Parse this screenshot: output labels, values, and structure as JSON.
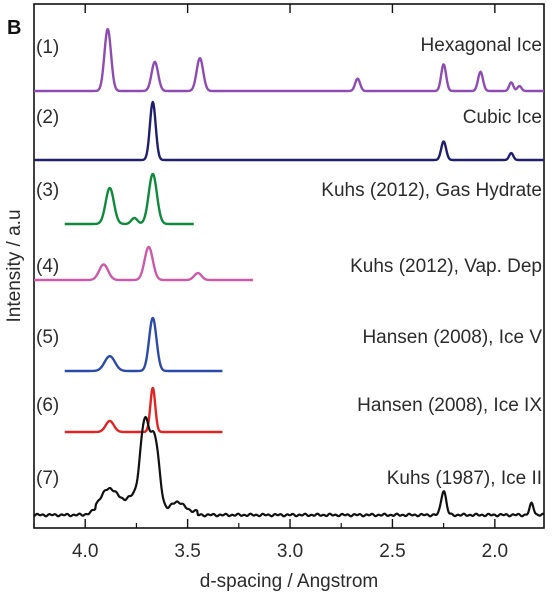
{
  "panel_label": "B",
  "chart_data": {
    "type": "line",
    "title": "",
    "xlabel": "d-spacing / Angstrom",
    "ylabel": "Intensity / a.u",
    "xlim": [
      4.25,
      1.76
    ],
    "x_reversed": true,
    "x_ticks": [
      4.0,
      3.5,
      3.0,
      2.5,
      2.0
    ],
    "x_tick_labels": [
      "4.0",
      "3.5",
      "3.0",
      "2.5",
      "2.0"
    ],
    "y_ticks_shown": false,
    "grid": false,
    "legend": "none",
    "series": [
      {
        "index_label": "(1)",
        "name": "Hexagonal Ice",
        "color": "#8e4cb3",
        "x_range": [
          4.25,
          1.76
        ],
        "peaks": [
          {
            "x": 3.89,
            "height": 1.0,
            "width": 0.016
          },
          {
            "x": 3.66,
            "height": 0.47,
            "width": 0.016
          },
          {
            "x": 3.44,
            "height": 0.53,
            "width": 0.016
          },
          {
            "x": 2.67,
            "height": 0.2,
            "width": 0.012
          },
          {
            "x": 2.25,
            "height": 0.43,
            "width": 0.012
          },
          {
            "x": 2.07,
            "height": 0.31,
            "width": 0.012
          },
          {
            "x": 1.92,
            "height": 0.14,
            "width": 0.01
          },
          {
            "x": 1.88,
            "height": 0.08,
            "width": 0.01
          }
        ]
      },
      {
        "index_label": "(2)",
        "name": "Cubic Ice",
        "color": "#1f1f6e",
        "x_range": [
          4.25,
          1.76
        ],
        "peaks": [
          {
            "x": 3.67,
            "height": 1.0,
            "width": 0.014
          },
          {
            "x": 2.25,
            "height": 0.32,
            "width": 0.012
          },
          {
            "x": 1.92,
            "height": 0.12,
            "width": 0.01
          }
        ]
      },
      {
        "index_label": "(3)",
        "name": "Kuhs (2012), Gas Hydrate",
        "color": "#0f8a3c",
        "x_range": [
          4.1,
          3.47
        ],
        "peaks": [
          {
            "x": 3.88,
            "height": 0.72,
            "width": 0.02
          },
          {
            "x": 3.76,
            "height": 0.12,
            "width": 0.015
          },
          {
            "x": 3.67,
            "height": 1.0,
            "width": 0.02
          }
        ]
      },
      {
        "index_label": "(4)",
        "name": "Kuhs (2012), Vap. Dep",
        "color": "#cc5aaa",
        "x_range": [
          4.25,
          3.18
        ],
        "peaks": [
          {
            "x": 3.91,
            "height": 0.47,
            "width": 0.022
          },
          {
            "x": 3.69,
            "height": 1.0,
            "width": 0.02
          },
          {
            "x": 3.45,
            "height": 0.21,
            "width": 0.018
          }
        ]
      },
      {
        "index_label": "(5)",
        "name": "Hansen (2008), Ice V",
        "color": "#2c4aa8",
        "x_range": [
          4.1,
          3.33
        ],
        "peaks": [
          {
            "x": 3.88,
            "height": 0.28,
            "width": 0.025
          },
          {
            "x": 3.67,
            "height": 1.0,
            "width": 0.018
          }
        ]
      },
      {
        "index_label": "(6)",
        "name": "Hansen (2008), Ice IX",
        "color": "#e02424",
        "x_range": [
          4.1,
          3.33
        ],
        "peaks": [
          {
            "x": 3.88,
            "height": 0.25,
            "width": 0.02
          },
          {
            "x": 3.67,
            "height": 1.0,
            "width": 0.012
          }
        ]
      },
      {
        "index_label": "(7)",
        "name": "Kuhs (1987), Ice II",
        "color": "#111111",
        "x_range": [
          4.25,
          1.76
        ],
        "peaks": [
          {
            "x": 3.88,
            "height": 0.24,
            "width": 0.045
          },
          {
            "x": 3.71,
            "height": 0.9,
            "width": 0.022
          },
          {
            "x": 3.66,
            "height": 0.74,
            "width": 0.022
          },
          {
            "x": 3.77,
            "height": 0.14,
            "width": 0.03
          },
          {
            "x": 3.55,
            "height": 0.1,
            "width": 0.03
          },
          {
            "x": 2.25,
            "height": 0.26,
            "width": 0.012
          },
          {
            "x": 1.82,
            "height": 0.12,
            "width": 0.01
          }
        ]
      }
    ]
  }
}
